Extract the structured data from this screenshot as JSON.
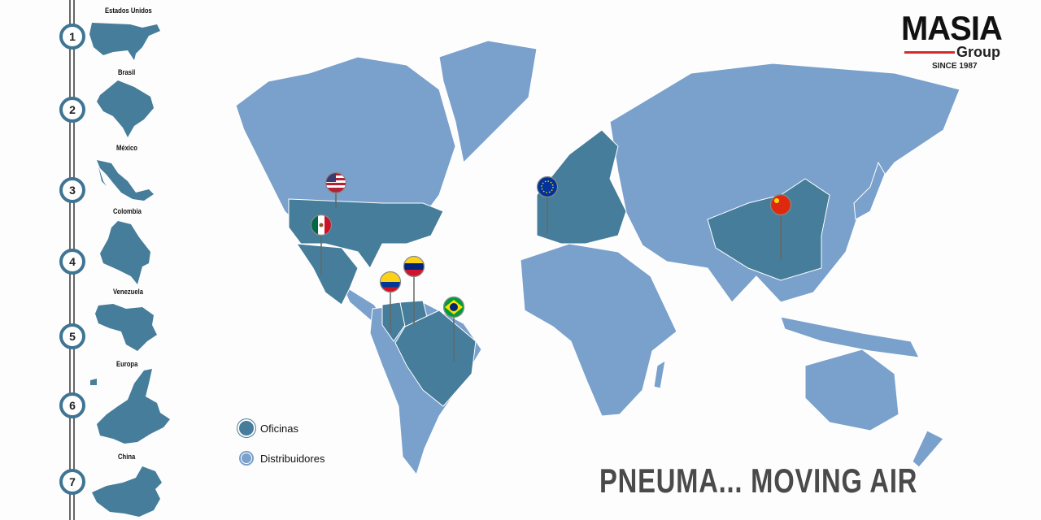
{
  "brand": {
    "name": "MASIA",
    "sub": "Group",
    "since": "SINCE 1987",
    "accent": "#d62b2b"
  },
  "colors": {
    "offices": "#457d9a",
    "distributors": "#7aa0cc"
  },
  "sidebar": {
    "items": [
      {
        "number": "1",
        "label": "Estados Unidos"
      },
      {
        "number": "2",
        "label": "Brasil"
      },
      {
        "number": "3",
        "label": "México"
      },
      {
        "number": "4",
        "label": "Colombia"
      },
      {
        "number": "5",
        "label": "Venezuela"
      },
      {
        "number": "6",
        "label": "Europa"
      },
      {
        "number": "7",
        "label": "China"
      }
    ]
  },
  "map": {
    "pins": [
      {
        "country": "Estados Unidos",
        "flag": "us-flag-icon"
      },
      {
        "country": "México",
        "flag": "mexico-flag-icon"
      },
      {
        "country": "Colombia",
        "flag": "colombia-flag-icon"
      },
      {
        "country": "Venezuela",
        "flag": "venezuela-flag-icon"
      },
      {
        "country": "Brasil",
        "flag": "brazil-flag-icon"
      },
      {
        "country": "Europa",
        "flag": "eu-flag-icon"
      },
      {
        "country": "China",
        "flag": "china-flag-icon"
      }
    ]
  },
  "legend": {
    "offices": "Oficinas",
    "distributors": "Distribuidores"
  },
  "slogan": "PNEUMA... MOVING AIR"
}
